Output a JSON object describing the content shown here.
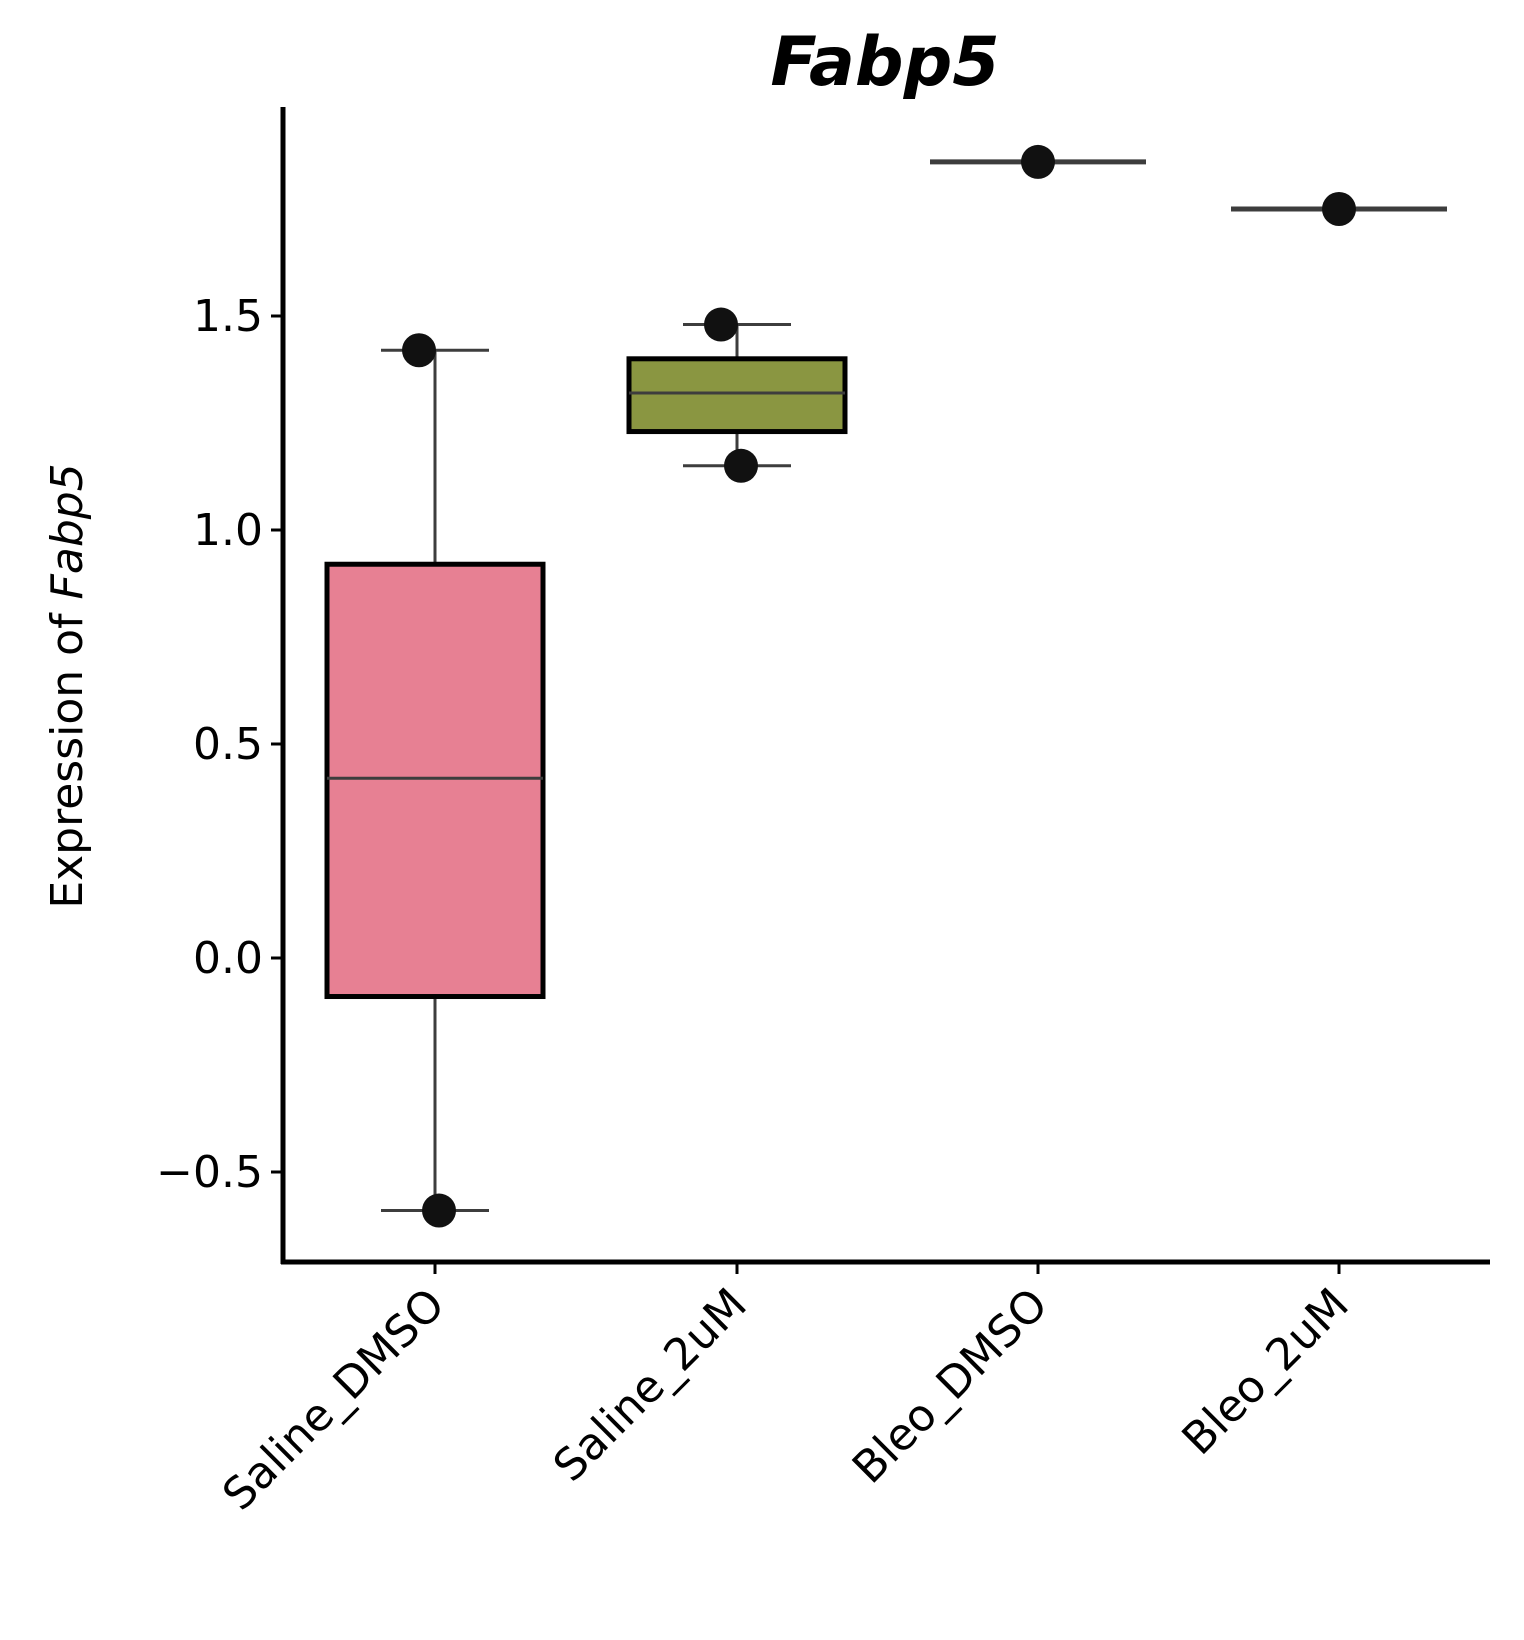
{
  "chart_data": {
    "type": "box",
    "title": "Fabp5",
    "ylabel_prefix": "Expression of ",
    "ylabel_gene": "Fabp5",
    "xlabel": "",
    "ylim": [
      -0.7,
      1.98
    ],
    "yticks": [
      -0.5,
      0.0,
      0.5,
      1.0,
      1.5
    ],
    "ytick_labels": [
      "−0.5",
      "0.0",
      "0.5",
      "1.0",
      "1.5"
    ],
    "categories": [
      "Saline_DMSO",
      "Saline_2uM",
      "Bleo_DMSO",
      "Bleo_2uM"
    ],
    "boxes": [
      {
        "category": "Saline_DMSO",
        "whisker_low": -0.59,
        "q1": -0.09,
        "median": 0.42,
        "q3": 0.92,
        "whisker_high": 1.42,
        "color": "#e78093",
        "points": [
          1.42,
          -0.59
        ]
      },
      {
        "category": "Saline_2uM",
        "whisker_low": 1.15,
        "q1": 1.23,
        "median": 1.32,
        "q3": 1.4,
        "whisker_high": 1.48,
        "color": "#8a9641",
        "points": [
          1.48,
          1.15
        ]
      },
      {
        "category": "Bleo_DMSO",
        "whisker_low": 1.86,
        "q1": 1.86,
        "median": 1.86,
        "q3": 1.86,
        "whisker_high": 1.86,
        "color": "#4a90c2",
        "points": [
          1.86
        ]
      },
      {
        "category": "Bleo_2uM",
        "whisker_low": 1.75,
        "q1": 1.75,
        "median": 1.75,
        "q3": 1.75,
        "whisker_high": 1.75,
        "color": "#b57ad6",
        "points": [
          1.75
        ]
      }
    ],
    "grid": false,
    "legend": "none"
  }
}
